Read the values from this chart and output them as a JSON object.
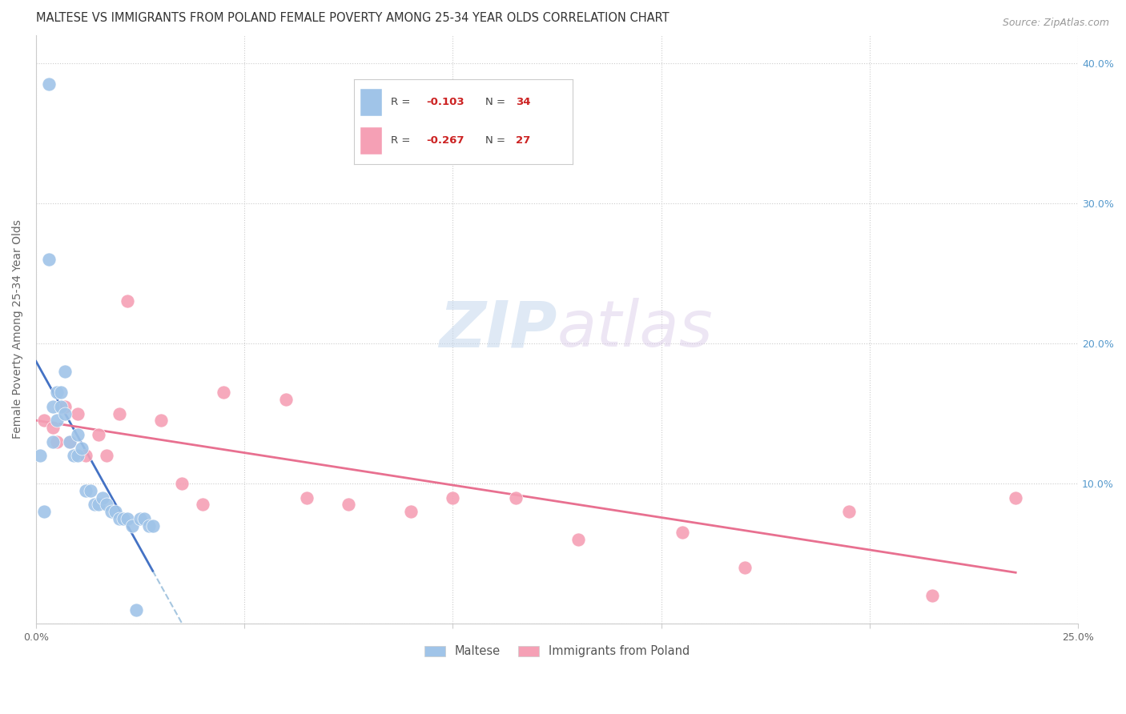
{
  "title": "MALTESE VS IMMIGRANTS FROM POLAND FEMALE POVERTY AMONG 25-34 YEAR OLDS CORRELATION CHART",
  "source": "Source: ZipAtlas.com",
  "ylabel": "Female Poverty Among 25-34 Year Olds",
  "watermark_zip": "ZIP",
  "watermark_atlas": "atlas",
  "legend_R1": "-0.103",
  "legend_N1": "34",
  "legend_R2": "-0.267",
  "legend_N2": "27",
  "legend_label1": "Maltese",
  "legend_label2": "Immigrants from Poland",
  "maltese_x": [
    0.001,
    0.002,
    0.003,
    0.003,
    0.004,
    0.004,
    0.005,
    0.005,
    0.006,
    0.006,
    0.007,
    0.007,
    0.008,
    0.009,
    0.01,
    0.01,
    0.011,
    0.012,
    0.013,
    0.014,
    0.015,
    0.016,
    0.017,
    0.018,
    0.019,
    0.02,
    0.021,
    0.022,
    0.023,
    0.024,
    0.025,
    0.026,
    0.027,
    0.028
  ],
  "maltese_y": [
    0.12,
    0.08,
    0.385,
    0.26,
    0.13,
    0.155,
    0.145,
    0.165,
    0.165,
    0.155,
    0.15,
    0.18,
    0.13,
    0.12,
    0.135,
    0.12,
    0.125,
    0.095,
    0.095,
    0.085,
    0.085,
    0.09,
    0.085,
    0.08,
    0.08,
    0.075,
    0.075,
    0.075,
    0.07,
    0.01,
    0.075,
    0.075,
    0.07,
    0.07
  ],
  "poland_x": [
    0.002,
    0.004,
    0.005,
    0.007,
    0.008,
    0.01,
    0.012,
    0.015,
    0.017,
    0.02,
    0.022,
    0.03,
    0.035,
    0.04,
    0.045,
    0.06,
    0.065,
    0.075,
    0.09,
    0.1,
    0.115,
    0.13,
    0.155,
    0.17,
    0.195,
    0.215,
    0.235
  ],
  "poland_y": [
    0.145,
    0.14,
    0.13,
    0.155,
    0.13,
    0.15,
    0.12,
    0.135,
    0.12,
    0.15,
    0.23,
    0.145,
    0.1,
    0.085,
    0.165,
    0.16,
    0.09,
    0.085,
    0.08,
    0.09,
    0.09,
    0.06,
    0.065,
    0.04,
    0.08,
    0.02,
    0.09
  ],
  "xlim": [
    0.0,
    0.25
  ],
  "ylim": [
    0.0,
    0.42
  ],
  "maltese_color": "#a0c4e8",
  "poland_color": "#f5a0b5",
  "maltese_line_color": "#4472c4",
  "poland_line_color": "#e87090",
  "maltese_dash_color": "#90b8d8",
  "background_color": "#ffffff",
  "grid_color": "#cccccc",
  "right_tick_color": "#5599cc",
  "title_color": "#333333",
  "source_color": "#999999"
}
